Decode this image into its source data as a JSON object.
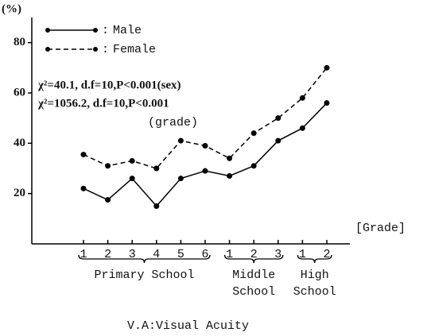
{
  "chart_data": {
    "type": "line",
    "y_label": "(%)",
    "x_label": "[Grade]",
    "caption": "V.A:Visual Acuity",
    "annotations": [
      "χ²=40.1, d.f=10,P<0.001(sex)",
      "χ²=1056.2, d.f=10,P<0.001",
      "(grade)"
    ],
    "categories": [
      "1",
      "2",
      "3",
      "4",
      "5",
      "6",
      "1",
      "2",
      "3",
      "1",
      "2"
    ],
    "groups": [
      {
        "label": [
          "Primary School"
        ],
        "size": 6
      },
      {
        "label": [
          "Middle",
          "School"
        ],
        "size": 3
      },
      {
        "label": [
          "High",
          "School"
        ],
        "size": 2
      }
    ],
    "series": [
      {
        "name": "Male",
        "color": "#000000",
        "dash": false,
        "values": [
          22,
          17.5,
          26,
          15,
          26,
          29,
          27,
          31,
          41,
          46,
          56
        ]
      },
      {
        "name": "Female",
        "color": "#000000",
        "dash": true,
        "values": [
          35.5,
          31,
          33,
          30,
          41,
          39,
          34,
          44,
          50,
          58,
          70
        ]
      }
    ],
    "ylim": [
      0,
      90
    ],
    "yticks": [
      20,
      40,
      60,
      80
    ]
  }
}
